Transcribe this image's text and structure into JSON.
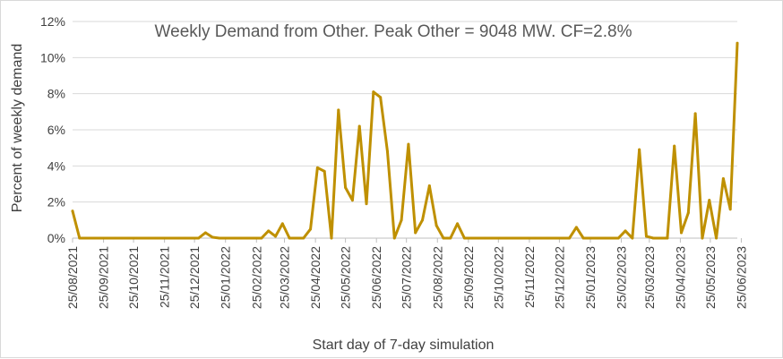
{
  "chart_data": {
    "type": "line",
    "title": "Weekly Demand from Other. Peak Other = 9048 MW. CF=2.8%",
    "xlabel": "Start day of 7-day simulation",
    "ylabel": "Percent of weekly demand",
    "x_start": "2021-08-25",
    "x_step_days": 7,
    "ylim": [
      0,
      12
    ],
    "y_ticks": [
      "0%",
      "2%",
      "4%",
      "6%",
      "8%",
      "10%",
      "12%"
    ],
    "y_tick_values": [
      0,
      2,
      4,
      6,
      8,
      10,
      12
    ],
    "x_tick_labels": [
      "25/08/2021",
      "25/09/2021",
      "25/10/2021",
      "25/11/2021",
      "25/12/2021",
      "25/01/2022",
      "25/02/2022",
      "25/03/2022",
      "25/04/2022",
      "25/05/2022",
      "25/06/2022",
      "25/07/2022",
      "25/08/2022",
      "25/09/2022",
      "25/10/2022",
      "25/11/2022",
      "25/12/2022",
      "25/01/2023",
      "25/02/2023",
      "25/03/2023",
      "25/04/2023",
      "25/05/2023",
      "25/06/2023"
    ],
    "x_tick_dates": [
      "2021-08-25",
      "2021-09-25",
      "2021-10-25",
      "2021-11-25",
      "2021-12-25",
      "2022-01-25",
      "2022-02-25",
      "2022-03-25",
      "2022-04-25",
      "2022-05-25",
      "2022-06-25",
      "2022-07-25",
      "2022-08-25",
      "2022-09-25",
      "2022-10-25",
      "2022-11-25",
      "2022-12-25",
      "2023-01-25",
      "2023-02-25",
      "2023-03-25",
      "2023-04-25",
      "2023-05-25",
      "2023-06-25"
    ],
    "grid": true,
    "line_color": "#bf9000",
    "series": [
      {
        "values": [
          1.5,
          0,
          0,
          0,
          0,
          0,
          0,
          0,
          0,
          0,
          0,
          0,
          0,
          0,
          0,
          0,
          0,
          0,
          0,
          0.3,
          0.05,
          0,
          0,
          0,
          0,
          0,
          0,
          0,
          0.4,
          0.1,
          0.8,
          0,
          0,
          0,
          0.5,
          3.9,
          3.7,
          0,
          7.1,
          2.8,
          2.1,
          6.2,
          1.9,
          8.1,
          7.8,
          4.8,
          0,
          1.0,
          5.2,
          0.3,
          1.0,
          2.9,
          0.7,
          0,
          0,
          0.8,
          0,
          0,
          0,
          0,
          0,
          0,
          0,
          0,
          0,
          0,
          0,
          0,
          0,
          0,
          0,
          0,
          0.6,
          0,
          0,
          0,
          0,
          0,
          0,
          0.4,
          0,
          4.9,
          0.1,
          0,
          0,
          0,
          5.1,
          0.3,
          1.4,
          6.9,
          0,
          2.1,
          0,
          3.3,
          1.6,
          10.8
        ]
      }
    ]
  }
}
